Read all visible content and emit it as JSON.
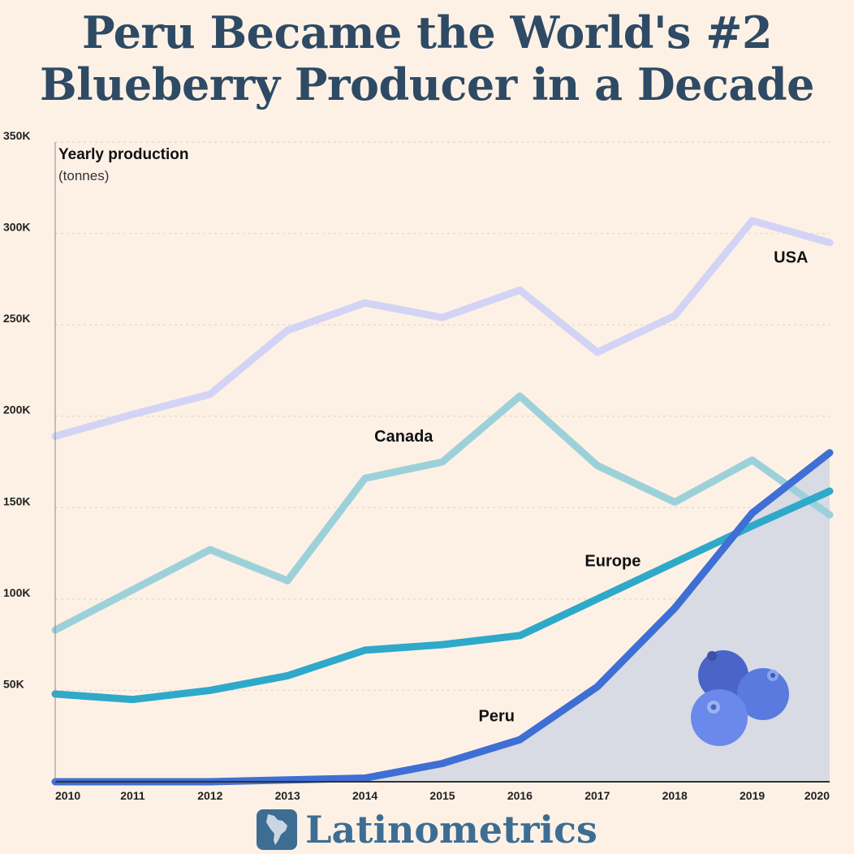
{
  "title": {
    "line1": "Peru Became the World's #2",
    "line2": "Blueberry Producer in a Decade"
  },
  "chart_data": {
    "type": "line",
    "ylabel_line1": "Yearly production",
    "ylabel_line2": "(tonnes)",
    "x": [
      2010,
      2011,
      2012,
      2013,
      2014,
      2015,
      2016,
      2017,
      2018,
      2019,
      2020
    ],
    "xticks": [
      "2010",
      "2011",
      "2012",
      "2013",
      "2014",
      "2015",
      "2016",
      "2017",
      "2018",
      "2019",
      "2020"
    ],
    "ylim": [
      0,
      350000
    ],
    "yticks": [
      {
        "value": 50000,
        "label": "50K"
      },
      {
        "value": 100000,
        "label": "100K"
      },
      {
        "value": 150000,
        "label": "150K"
      },
      {
        "value": 200000,
        "label": "200K"
      },
      {
        "value": 250000,
        "label": "250K"
      },
      {
        "value": 300000,
        "label": "300K"
      },
      {
        "value": 350000,
        "label": "350K"
      }
    ],
    "grid": "horizontal-dashed",
    "series": [
      {
        "name": "USA",
        "color": "#d3d3f5",
        "label_x": 2019.5,
        "label_y": 284000,
        "values": [
          189000,
          201000,
          212000,
          247000,
          262000,
          254000,
          269000,
          235000,
          255000,
          307000,
          295000
        ]
      },
      {
        "name": "Canada",
        "color": "#9dd1da",
        "label_x": 2014.5,
        "label_y": 186000,
        "values": [
          83000,
          105000,
          127000,
          110000,
          166000,
          175000,
          211000,
          173000,
          153000,
          176000,
          146000
        ]
      },
      {
        "name": "Europe",
        "color": "#2fa9c9",
        "label_x": 2017.2,
        "label_y": 118000,
        "values": [
          48000,
          45000,
          50000,
          58000,
          72000,
          75000,
          80000,
          100000,
          120000,
          140000,
          159000
        ]
      },
      {
        "name": "Peru",
        "color": "#3f6fd4",
        "label_x": 2015.7,
        "label_y": 33000,
        "shaded": true,
        "values": [
          0,
          0,
          0,
          1000,
          2000,
          10000,
          23000,
          52000,
          95000,
          147000,
          180000
        ]
      }
    ]
  },
  "footer": {
    "brand": "Latinometrics"
  },
  "decor": [
    "blueberries-illustration",
    "latin-america-map-icon"
  ]
}
